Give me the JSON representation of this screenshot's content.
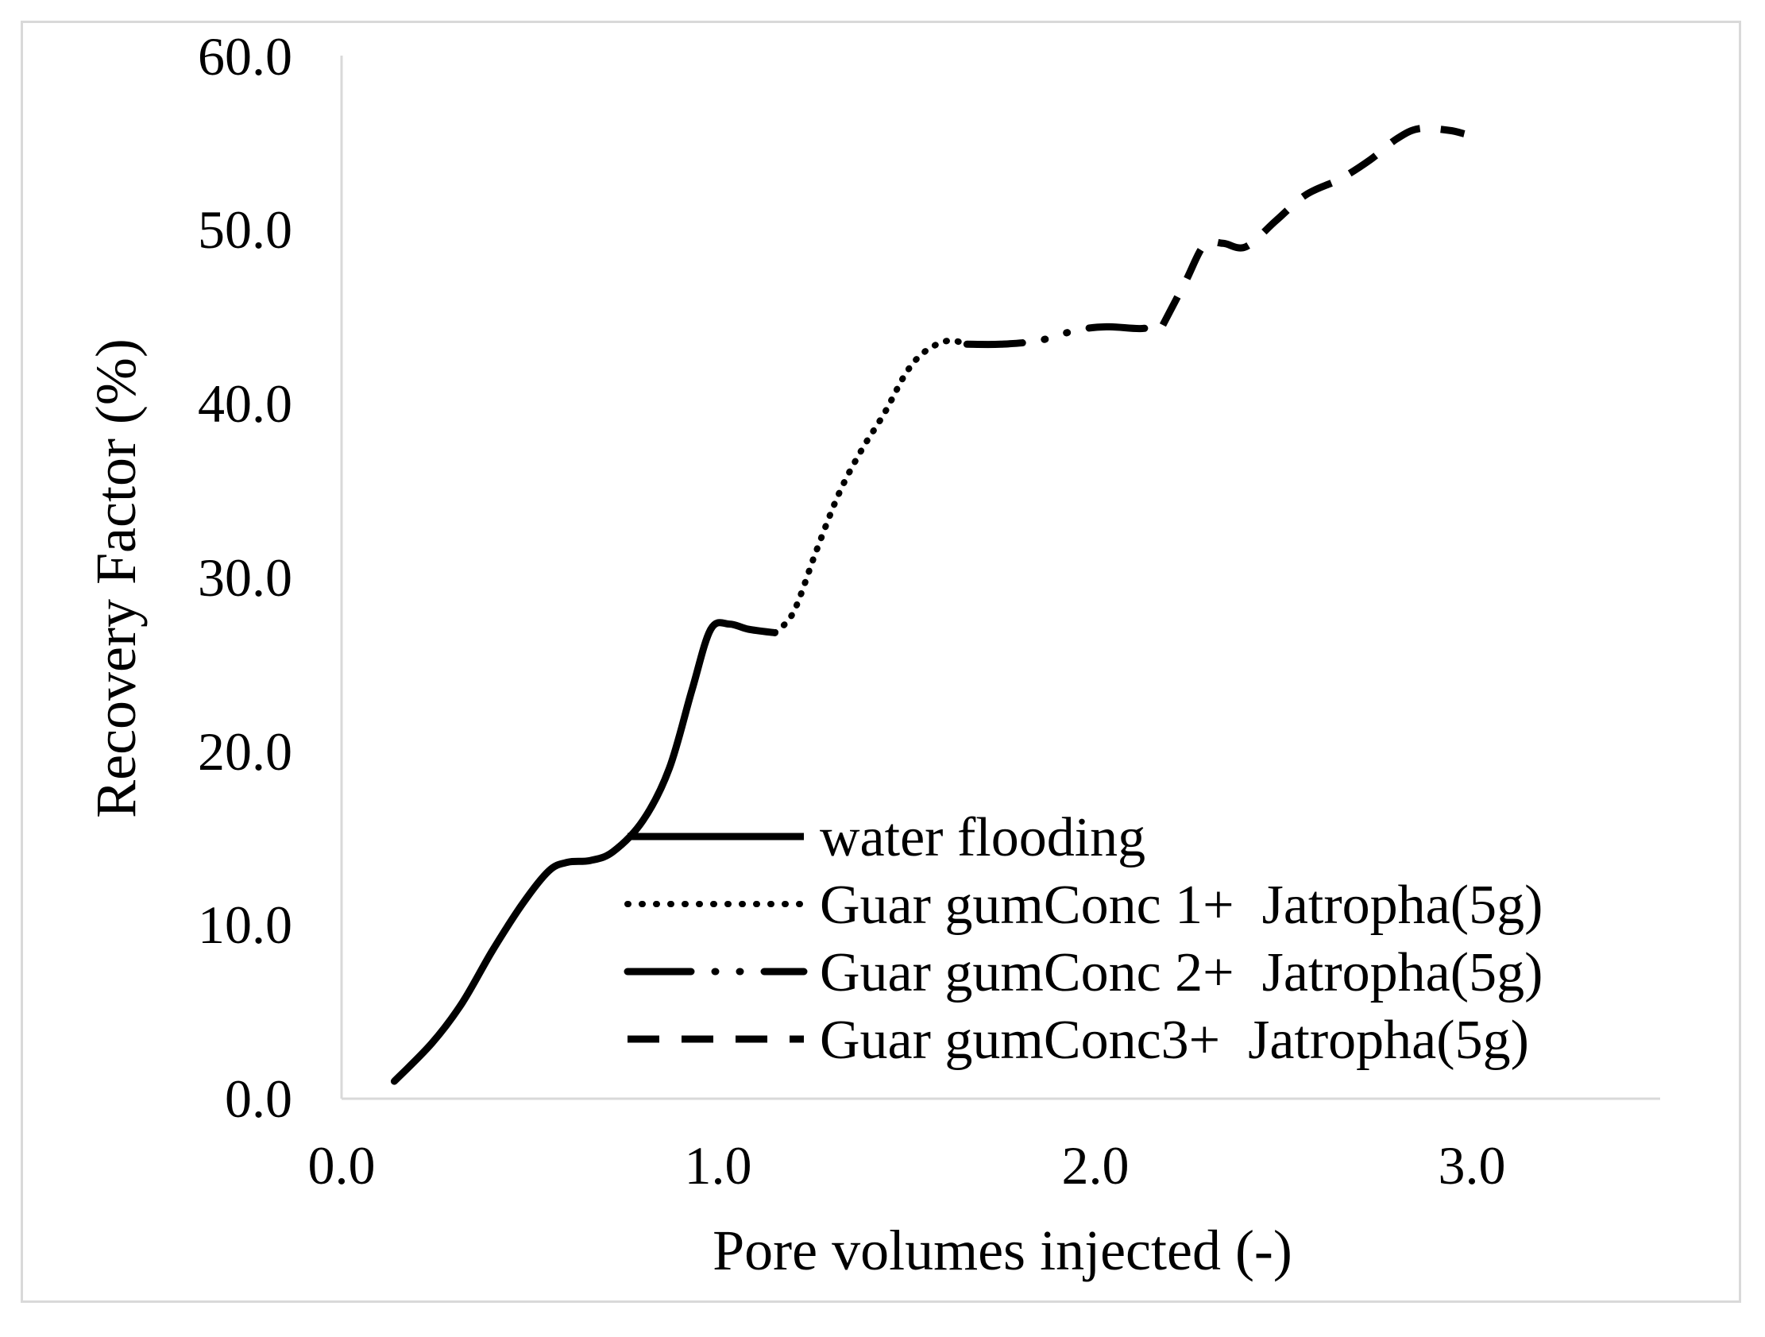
{
  "chart_data": {
    "type": "line",
    "title": "",
    "xlabel": "Pore volumes injected (-)",
    "ylabel": "Recovery Factor (%)",
    "xlim": [
      0,
      3.5
    ],
    "ylim": [
      0,
      60
    ],
    "x_ticks": [
      "0.0",
      "1.0",
      "2.0",
      "3.0"
    ],
    "y_ticks": [
      "0.0",
      "10.0",
      "20.0",
      "30.0",
      "40.0",
      "50.0",
      "60.0"
    ],
    "grid": false,
    "legend_position": "bottom-right",
    "colors": {
      "line": "#000000",
      "axis": "#d9d9d9",
      "frame": "#d9d9d9"
    },
    "series": [
      {
        "name": "water flooding",
        "style": "solid",
        "points": [
          [
            0.14,
            1.0
          ],
          [
            0.24,
            3.2
          ],
          [
            0.32,
            5.5
          ],
          [
            0.4,
            8.5
          ],
          [
            0.48,
            11.2
          ],
          [
            0.55,
            13.1
          ],
          [
            0.6,
            13.6
          ],
          [
            0.66,
            13.7
          ],
          [
            0.72,
            14.2
          ],
          [
            0.8,
            16.0
          ],
          [
            0.87,
            19.0
          ],
          [
            0.93,
            23.5
          ],
          [
            0.98,
            27.0
          ],
          [
            1.03,
            27.3
          ],
          [
            1.08,
            27.0
          ],
          [
            1.15,
            26.8
          ]
        ]
      },
      {
        "name": "Guar gumConc 1+  Jatropha(5g)",
        "style": "dotted",
        "points": [
          [
            1.15,
            26.8
          ],
          [
            1.2,
            28.0
          ],
          [
            1.26,
            31.5
          ],
          [
            1.32,
            34.8
          ],
          [
            1.38,
            37.3
          ],
          [
            1.44,
            39.4
          ],
          [
            1.5,
            41.8
          ],
          [
            1.55,
            43.0
          ],
          [
            1.61,
            43.6
          ],
          [
            1.66,
            43.4
          ]
        ]
      },
      {
        "name": "Guar gumConc 2+  Jatropha(5g)",
        "style": "dash-dot-dot",
        "points": [
          [
            1.66,
            43.4
          ],
          [
            1.75,
            43.4
          ],
          [
            1.85,
            43.6
          ],
          [
            1.95,
            44.2
          ],
          [
            2.03,
            44.4
          ],
          [
            2.12,
            44.3
          ],
          [
            2.18,
            44.5
          ]
        ]
      },
      {
        "name": "Guar gumConc3+  Jatropha(5g)",
        "style": "dashed",
        "points": [
          [
            2.18,
            44.5
          ],
          [
            2.24,
            47.0
          ],
          [
            2.29,
            49.1
          ],
          [
            2.34,
            49.2
          ],
          [
            2.4,
            49.0
          ],
          [
            2.48,
            50.5
          ],
          [
            2.56,
            52.0
          ],
          [
            2.65,
            52.9
          ],
          [
            2.73,
            54.0
          ],
          [
            2.8,
            55.2
          ],
          [
            2.86,
            55.8
          ],
          [
            2.94,
            55.7
          ],
          [
            2.98,
            55.5
          ]
        ]
      }
    ]
  }
}
